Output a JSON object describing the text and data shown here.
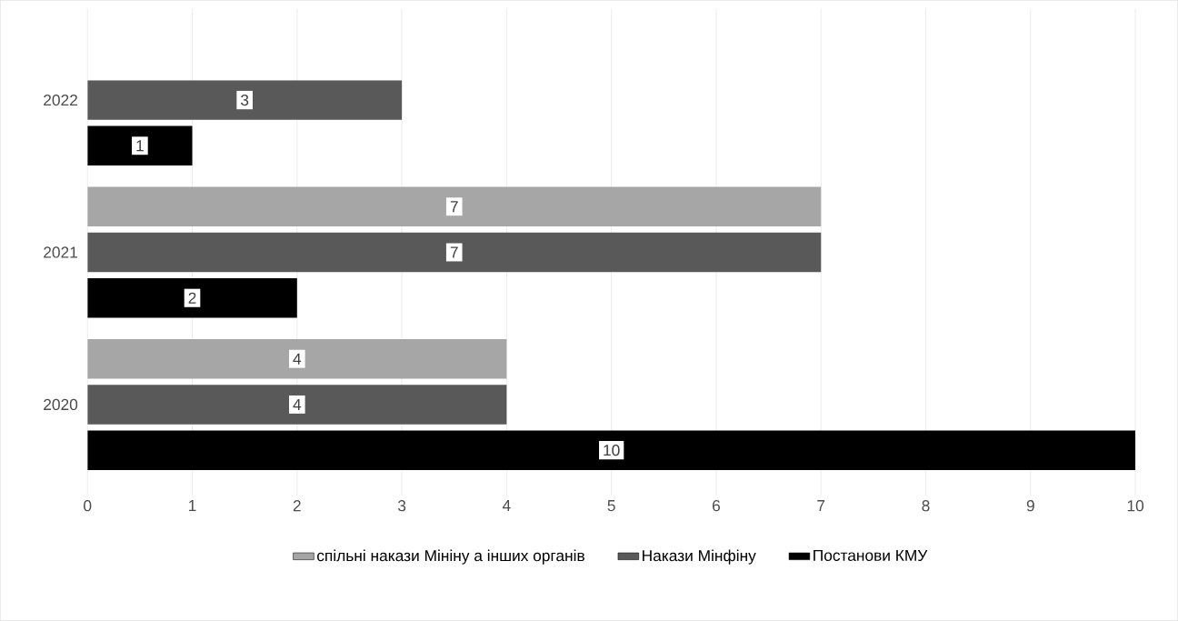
{
  "chart_data": {
    "type": "bar",
    "orientation": "horizontal",
    "categories": [
      "2022",
      "2021",
      "2020"
    ],
    "series": [
      {
        "name": "Постанови КМУ",
        "color": "#000000",
        "values": [
          1,
          2,
          10
        ]
      },
      {
        "name": "Накази Мінфіну",
        "color": "#595959",
        "values": [
          3,
          7,
          4
        ]
      },
      {
        "name": "спільні накази Мініну а інших органів",
        "color": "#a6a6a6",
        "values": [
          null,
          7,
          4
        ]
      }
    ],
    "xlim": [
      0,
      10
    ],
    "xticks": [
      0,
      1,
      2,
      3,
      4,
      5,
      6,
      7,
      8,
      9,
      10
    ],
    "grid": "x",
    "legend": "bottom",
    "data_labels": true
  }
}
